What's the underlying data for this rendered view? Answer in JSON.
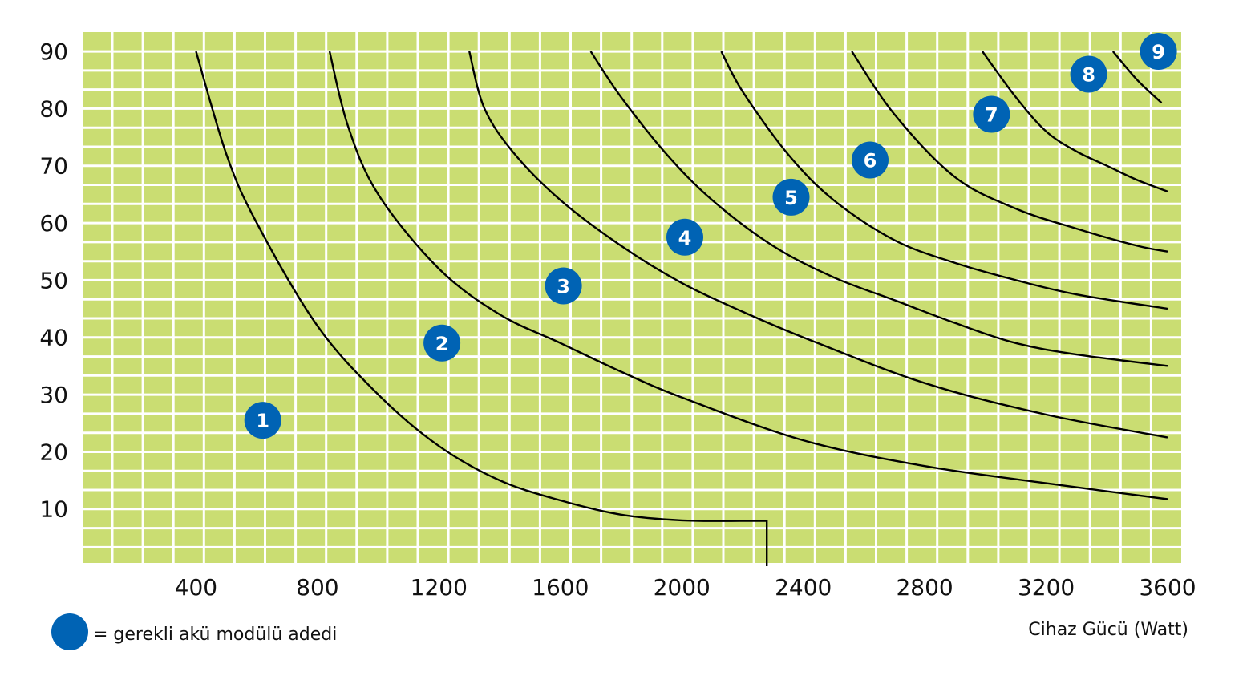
{
  "chart_data": {
    "type": "line",
    "xlabel": "Cihaz Gücü (Watt)",
    "ylabel": "",
    "xlim": [
      0,
      3640
    ],
    "ylim": [
      0,
      92
    ],
    "x_ticks": [
      400,
      800,
      1200,
      1600,
      2000,
      2400,
      2800,
      3200,
      3600
    ],
    "x_tick_labels": [
      "400",
      "800",
      "1200",
      "1600",
      "2000",
      "2400",
      "2800",
      "3200",
      "3600"
    ],
    "y_ticks": [
      10,
      20,
      30,
      40,
      50,
      60,
      70,
      80,
      90
    ],
    "y_tick_labels": [
      "10",
      "20",
      "30",
      "40",
      "50",
      "60",
      "70",
      "80",
      "90"
    ],
    "grid": true,
    "background_color": "#cadd72",
    "grid_color": "#ffffff",
    "curve_color": "#000000",
    "marker_color": "#0063b4",
    "series": [
      {
        "x": [
          400,
          500,
          600,
          800,
          1000,
          1200,
          1400,
          1600,
          1800,
          2000,
          2200,
          2280,
          2280
        ],
        "y": [
          90,
          72,
          60,
          42,
          30,
          21,
          15,
          11.5,
          9,
          8,
          7.9,
          7.9,
          0
        ]
      },
      {
        "x": [
          840,
          900,
          1000,
          1200,
          1400,
          1600,
          1800,
          2000,
          2400,
          2800,
          3200,
          3600
        ],
        "y": [
          90,
          77,
          65,
          52,
          44,
          39,
          34,
          29.5,
          22,
          17.5,
          14.5,
          11.7
        ]
      },
      {
        "x": [
          1300,
          1350,
          1450,
          1600,
          1800,
          2000,
          2200,
          2400,
          2800,
          3200,
          3600
        ],
        "y": [
          90,
          80,
          72,
          64,
          56,
          49.5,
          44.5,
          40,
          32,
          26.5,
          22.5
        ]
      },
      {
        "x": [
          1700,
          1800,
          1950,
          2100,
          2300,
          2500,
          2700,
          2900,
          3100,
          3300,
          3600
        ],
        "y": [
          90,
          82,
          72,
          64,
          56,
          50.5,
          46.5,
          42.5,
          39,
          37,
          35
        ]
      },
      {
        "x": [
          2130,
          2200,
          2350,
          2500,
          2700,
          2900,
          3100,
          3300,
          3600
        ],
        "y": [
          90,
          83,
          72,
          64,
          57,
          53,
          50,
          47.5,
          45
        ]
      },
      {
        "x": [
          2560,
          2700,
          2900,
          3100,
          3300,
          3500,
          3600
        ],
        "y": [
          90,
          79,
          68,
          62.5,
          59,
          56,
          55
        ]
      },
      {
        "x": [
          2990,
          3100,
          3200,
          3300,
          3400,
          3500,
          3600
        ],
        "y": [
          90,
          82,
          76,
          72.5,
          70,
          67.5,
          65.5
        ]
      },
      {
        "x": [
          3420,
          3500,
          3580
        ],
        "y": [
          90,
          85,
          81
        ]
      }
    ],
    "markers": [
      {
        "label": "1",
        "x": 620,
        "y": 25.5
      },
      {
        "label": "2",
        "x": 1210,
        "y": 39
      },
      {
        "label": "3",
        "x": 1610,
        "y": 49
      },
      {
        "label": "4",
        "x": 2010,
        "y": 57.5
      },
      {
        "label": "5",
        "x": 2360,
        "y": 64.5
      },
      {
        "label": "6",
        "x": 2620,
        "y": 71
      },
      {
        "label": "7",
        "x": 3020,
        "y": 79
      },
      {
        "label": "8",
        "x": 3340,
        "y": 86
      },
      {
        "label": "9",
        "x": 3570,
        "y": 90
      }
    ]
  },
  "legend": {
    "text": "=  gerekli akü modülü adedi"
  }
}
